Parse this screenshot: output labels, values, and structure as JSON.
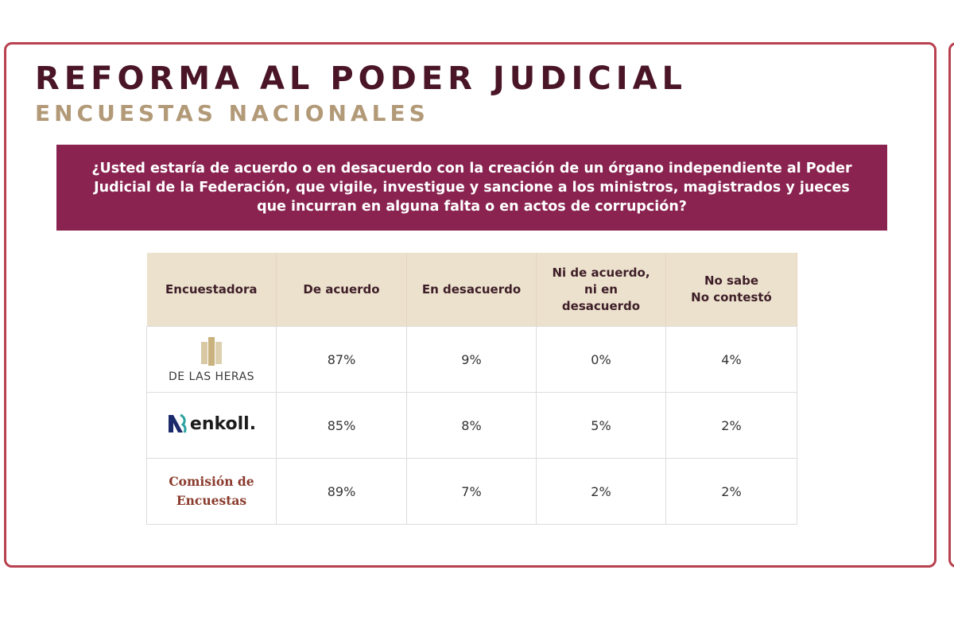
{
  "slide": {
    "title": "REFORMA AL PODER JUDICIAL",
    "subtitle": "ENCUESTAS NACIONALES",
    "question": "¿Usted estaría de acuerdo o en desacuerdo con la creación de un órgano independiente al Poder Judicial de la Federación, que vigile, investigue y sancione a los ministros, magistrados y jueces que incurran en alguna falta o en actos de corrupción?"
  },
  "colors": {
    "title": "#4a1526",
    "subtitle": "#b29a78",
    "question_bg": "#8a2350",
    "header_bg": "#ece1cd",
    "frame": "#b8414f"
  },
  "table": {
    "headers": {
      "pollster": "Encuestadora",
      "agree": "De acuerdo",
      "disagree": "En desacuerdo",
      "neither_line1": "Ni de acuerdo,",
      "neither_line2": "ni en",
      "neither_line3": "desacuerdo",
      "dk_line1": "No sabe",
      "dk_line2": "No contestó"
    },
    "rows": [
      {
        "pollster_logo": "DE LAS HERAS",
        "logo_icon": "de-las-heras-logo-icon",
        "agree": "87%",
        "disagree": "9%",
        "neither": "0%",
        "dk": "4%"
      },
      {
        "pollster_logo": "enkoll.",
        "logo_icon": "enkoll-logo-icon",
        "agree": "85%",
        "disagree": "8%",
        "neither": "5%",
        "dk": "2%"
      },
      {
        "pollster_logo_line1": "Comisión de",
        "pollster_logo_line2": "Encuestas",
        "agree": "89%",
        "disagree": "7%",
        "neither": "2%",
        "dk": "2%"
      }
    ]
  }
}
